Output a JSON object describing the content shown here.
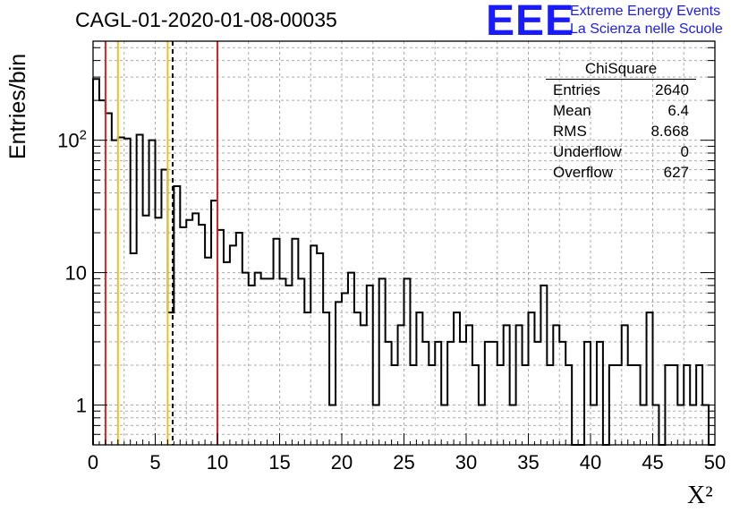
{
  "header": {
    "run_title": "CAGL-01-2020-01-08-00035",
    "logo_mark": "EEE",
    "logo_line1": "Extreme Energy Events",
    "logo_line2": "La Scienza nelle Scuole"
  },
  "stats": {
    "name": "ChiSquare",
    "rows": [
      {
        "label": "Entries",
        "value": "2640"
      },
      {
        "label": "Mean",
        "value": "6.4"
      },
      {
        "label": "RMS",
        "value": "8.668"
      },
      {
        "label": "Underflow",
        "value": "0"
      },
      {
        "label": "Overflow",
        "value": "627"
      }
    ]
  },
  "chart_data": {
    "type": "histogram",
    "title": "CAGL-01-2020-01-08-00035",
    "xlabel": "X²",
    "ylabel": "Entries/bin",
    "xlim": [
      0,
      50
    ],
    "ylim": [
      0.5,
      560
    ],
    "y_scale": "log",
    "grid": true,
    "x_ticks": [
      "0",
      "5",
      "10",
      "15",
      "20",
      "25",
      "30",
      "35",
      "40",
      "45",
      "50"
    ],
    "y_ticks": [
      {
        "value": 1,
        "label": "1"
      },
      {
        "value": 10,
        "label": "10"
      },
      {
        "value": 100,
        "label": "10",
        "exponent": "2"
      }
    ],
    "bin_width": 0.5,
    "values": [
      290,
      200,
      160,
      100,
      105,
      103,
      14,
      110,
      27,
      100,
      26,
      60,
      5,
      45,
      22,
      25,
      28,
      23,
      13,
      35,
      21,
      12,
      16,
      20,
      10,
      8,
      10,
      9,
      9,
      18,
      9,
      8,
      18,
      9,
      5,
      16,
      14,
      5,
      1,
      6,
      7,
      10,
      5,
      4,
      8,
      1,
      9,
      3,
      2,
      4,
      9,
      2,
      5,
      3,
      2,
      3,
      1,
      3,
      5,
      3,
      4,
      2,
      1,
      3,
      3,
      2,
      4,
      1,
      4,
      2,
      5,
      3,
      8,
      2,
      4,
      3,
      2,
      0.4,
      0.4,
      3,
      1,
      3,
      0.4,
      2,
      2,
      4,
      2,
      2,
      1,
      5,
      1,
      0.4,
      2,
      2,
      1,
      2,
      1,
      2,
      1,
      0.4
    ],
    "reference_lines": [
      {
        "x": 1,
        "color": "#dd2222",
        "style": "solid"
      },
      {
        "x": 2,
        "color": "#f0c020",
        "style": "solid"
      },
      {
        "x": 6,
        "color": "#f0c020",
        "style": "solid"
      },
      {
        "x": 6.4,
        "color": "#000000",
        "style": "dashed"
      },
      {
        "x": 10,
        "color": "#dd2222",
        "style": "solid"
      }
    ]
  }
}
